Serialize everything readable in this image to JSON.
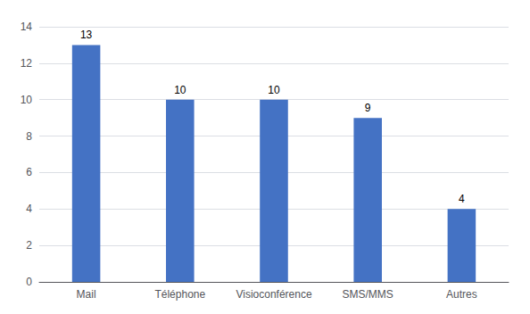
{
  "chart_data": {
    "type": "bar",
    "categories": [
      "Mail",
      "Téléphone",
      "Visioconférence",
      "SMS/MMS",
      "Autres"
    ],
    "values": [
      13,
      10,
      10,
      9,
      4
    ],
    "color": "#4472C4",
    "ylim": [
      0,
      14
    ],
    "yticks": [
      0,
      2,
      4,
      6,
      8,
      10,
      12,
      14
    ],
    "grid": true,
    "data_labels": true
  }
}
